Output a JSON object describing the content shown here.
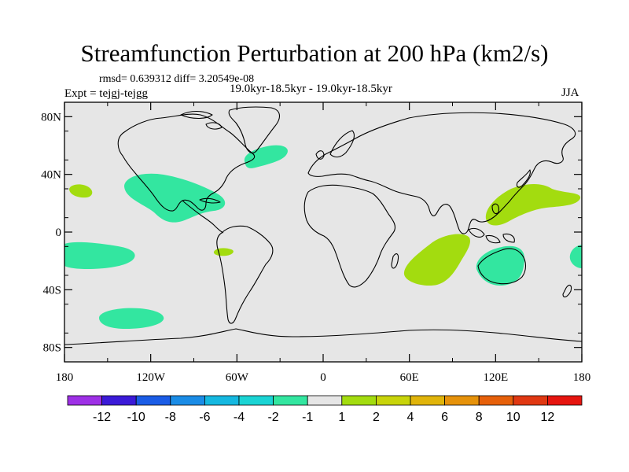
{
  "figure": {
    "title": "Streamfunction Perturbation at 200 hPa (km2/s)",
    "stats": "rmsd= 0.639312 diff= 3.20549e-08",
    "expt": "Expt = tejgj-tejgg",
    "period": "19.0kyr-18.5kyr - 19.0kyr-18.5kyr",
    "season": "JJA"
  },
  "map": {
    "projection": "cylindrical-equidistant",
    "lon_range": [
      -180,
      180
    ],
    "lat_range": [
      -90,
      90
    ],
    "background_color": "#e6e6e6",
    "lat_ticks": [
      {
        "value": 80,
        "label": "80N"
      },
      {
        "value": 40,
        "label": "40N"
      },
      {
        "value": 0,
        "label": "0"
      },
      {
        "value": -40,
        "label": "40S"
      },
      {
        "value": -80,
        "label": "80S"
      }
    ],
    "lon_ticks": [
      {
        "value": -180,
        "label": "180"
      },
      {
        "value": -120,
        "label": "120W"
      },
      {
        "value": -60,
        "label": "60W"
      },
      {
        "value": 0,
        "label": "0"
      },
      {
        "value": 60,
        "label": "60E"
      },
      {
        "value": 120,
        "label": "120E"
      },
      {
        "value": 180,
        "label": "180"
      }
    ]
  },
  "chart_data": {
    "type": "heatmap",
    "title": "Streamfunction Perturbation at 200 hPa (km2/s)",
    "units": "km2/s",
    "anomaly_regions": [
      {
        "name": "north-atlantic-negative",
        "level": "-2 to -1",
        "color": "#33e6a0",
        "center": [
          -35,
          45
        ]
      },
      {
        "name": "tropical-america-negative",
        "level": "-2 to -1",
        "color": "#33e6a0",
        "center": [
          -100,
          25
        ]
      },
      {
        "name": "east-pacific-positive",
        "level": "1 to 2",
        "color": "#a3dc0f",
        "center": [
          -165,
          30
        ]
      },
      {
        "name": "amazon-positive",
        "level": "1 to 2",
        "color": "#a3dc0f",
        "center": [
          -70,
          -13
        ]
      },
      {
        "name": "south-pacific-negative",
        "level": "-2 to -1",
        "color": "#33e6a0",
        "center": [
          -150,
          -15
        ]
      },
      {
        "name": "south-pacific-high-lat-negative",
        "level": "-2 to -1",
        "color": "#33e6a0",
        "center": [
          -130,
          -60
        ]
      },
      {
        "name": "indian-ocean-positive",
        "level": "1 to 2",
        "color": "#a3dc0f",
        "center": [
          85,
          -20
        ]
      },
      {
        "name": "west-pacific-positive",
        "level": "1 to 2",
        "color": "#a3dc0f",
        "center": [
          140,
          20
        ]
      },
      {
        "name": "australia-negative",
        "level": "-2 to -1",
        "color": "#33e6a0",
        "center": [
          130,
          -25
        ]
      },
      {
        "name": "southwest-pacific-negative",
        "level": "-2 to -1",
        "color": "#33e6a0",
        "center": [
          178,
          -15
        ]
      }
    ]
  },
  "colorbar": {
    "labels": [
      "-12",
      "-10",
      "-8",
      "-6",
      "-4",
      "-2",
      "-1",
      "1",
      "2",
      "4",
      "6",
      "8",
      "10",
      "12"
    ],
    "colors": [
      "#9e30e6",
      "#3b1ad8",
      "#1a5ce6",
      "#1a8ce6",
      "#15b8e0",
      "#1ad4d4",
      "#33e6a0",
      "#e6e6e6",
      "#a3dc0f",
      "#c8d40a",
      "#e0b40a",
      "#e6920a",
      "#e6600a",
      "#e03812",
      "#e6150f"
    ]
  }
}
